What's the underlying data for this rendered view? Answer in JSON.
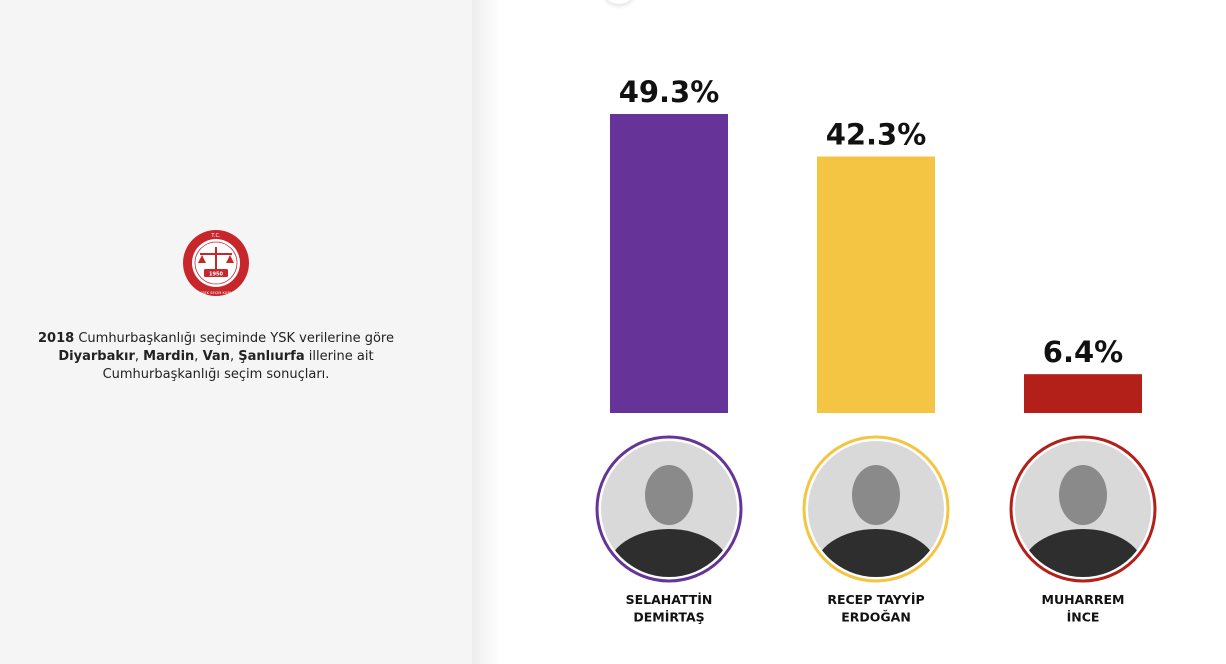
{
  "sidebar": {
    "seal": {
      "icon": "ysk-seal-icon",
      "top_text": "T.C.",
      "bottom_text": "YÜKSEK SEÇİM KURULU",
      "year": "1950",
      "color": "#c8262d"
    },
    "description": {
      "year": "2018",
      "line1_rest": " Cumhurbaşkanlığı seçiminde YSK verilerine göre",
      "city1": "Diyarbakır",
      "city2": "Mardin",
      "city3": "Van",
      "city4": "Şanlıurfa",
      "sep": ", ",
      "line2_rest": " illerine ait",
      "line3": "Cumhurbaşkanlığı seçim sonuçları."
    }
  },
  "chart_data": {
    "type": "bar",
    "categories": [
      "SELAHATTİN DEMİRTAŞ",
      "RECEP TAYYİP ERDOĞAN",
      "MUHARREM İNCE"
    ],
    "values": [
      49.3,
      42.3,
      6.4
    ],
    "value_labels": [
      "49.3%",
      "42.3%",
      "6.4%"
    ],
    "name_lines": [
      [
        "SELAHATTİN",
        "DEMİRTAŞ"
      ],
      [
        "RECEP TAYYİP",
        "ERDOĞAN"
      ],
      [
        "MUHARREM",
        "İNCE"
      ]
    ],
    "colors": [
      "#663399",
      "#f4c443",
      "#b32019"
    ],
    "photo_icons": [
      "candidate-photo-icon",
      "candidate-photo-icon",
      "candidate-photo-icon"
    ],
    "ylim": [
      0,
      49.3
    ],
    "grid": false,
    "legend": "none"
  }
}
